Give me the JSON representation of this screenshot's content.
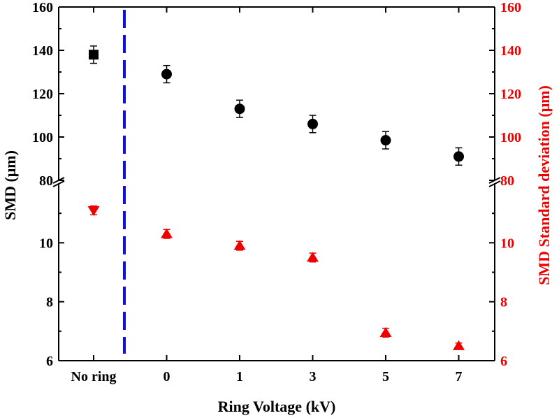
{
  "chart_data": {
    "type": "scatter",
    "title": "",
    "xlabel": "Ring Voltage (kV)",
    "ylabel_left": "SMD (μm)",
    "ylabel_right": "SMD Standard deviation (μm)",
    "categories": [
      "No ring",
      "0",
      "1",
      "3",
      "5",
      "7"
    ],
    "upper_ylim": [
      80,
      160
    ],
    "lower_ylim": [
      6,
      12
    ],
    "upper_ticks": [
      "80",
      "100",
      "120",
      "140",
      "160"
    ],
    "lower_ticks": [
      "6",
      "8",
      "10"
    ],
    "separator": "dashed vertical line between No ring and 0",
    "colors": {
      "left_axis": "#000000",
      "right_axis": "#ee0000",
      "separator": "#1010dd",
      "smd": "#000000",
      "std": "#ee0000"
    },
    "series": [
      {
        "name": "SMD",
        "axis": "left",
        "marker": "square",
        "color": "#000000",
        "category": "No ring",
        "value": 138,
        "err": 4
      },
      {
        "name": "SMD",
        "axis": "left",
        "marker": "circle",
        "color": "#000000",
        "categories": [
          "0",
          "1",
          "3",
          "5",
          "7"
        ],
        "values": [
          129,
          113,
          106,
          98.5,
          91
        ],
        "errs": [
          4,
          4,
          4,
          4,
          4
        ]
      },
      {
        "name": "SMD Standard deviation",
        "axis": "right",
        "marker": "triangle-down",
        "color": "#ee0000",
        "category": "No ring",
        "value": 11.1,
        "err": 0.15
      },
      {
        "name": "SMD Standard deviation",
        "axis": "right",
        "marker": "triangle-up",
        "color": "#ee0000",
        "categories": [
          "0",
          "1",
          "3",
          "5",
          "7"
        ],
        "values": [
          10.3,
          9.9,
          9.5,
          6.95,
          6.5
        ],
        "errs": [
          0.15,
          0.15,
          0.15,
          0.15,
          0.1
        ]
      }
    ]
  }
}
